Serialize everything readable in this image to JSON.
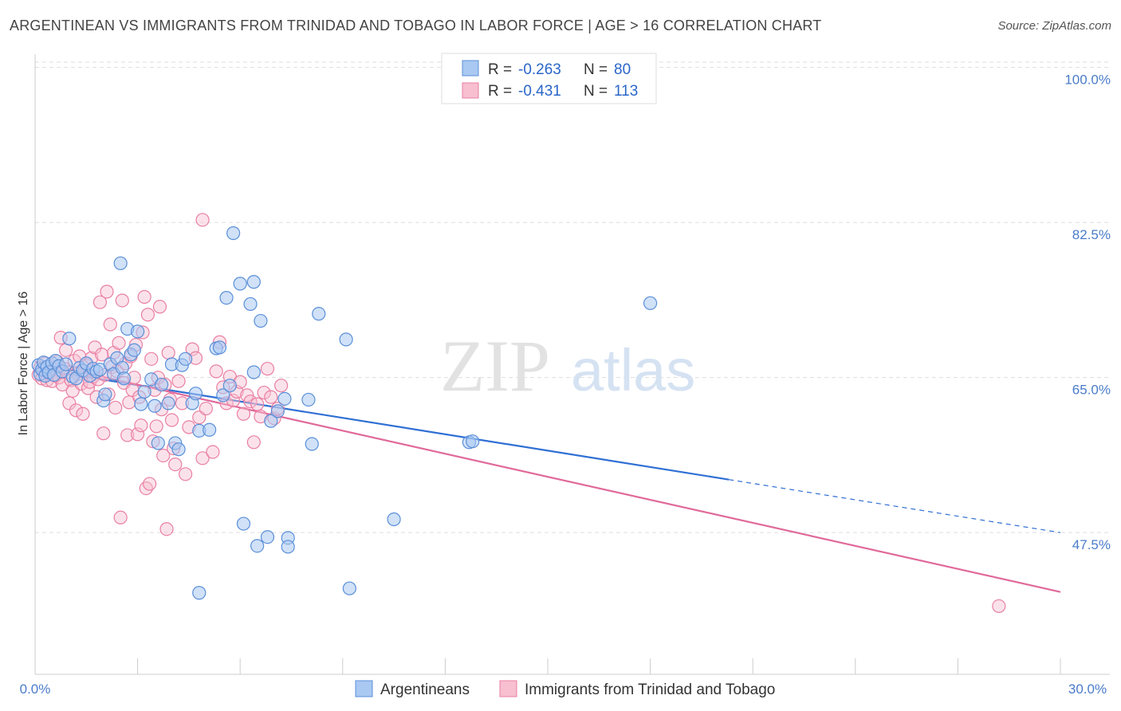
{
  "title": "ARGENTINEAN VS IMMIGRANTS FROM TRINIDAD AND TOBAGO IN LABOR FORCE | AGE > 16 CORRELATION CHART",
  "source": "Source: ZipAtlas.com",
  "watermark": {
    "zip": "ZIP",
    "atlas": "atlas"
  },
  "legend": {
    "r_label": "R =",
    "n_label": "N =",
    "rows": [
      {
        "r": "-0.263",
        "n": "80"
      },
      {
        "r": "-0.431",
        "n": "113"
      }
    ]
  },
  "colors": {
    "blue_fill": "#a9c9f2",
    "blue_stroke": "#5a8fd8",
    "blue_line": "#2f6fd4",
    "pink_fill": "#f7bfd0",
    "pink_stroke": "#e97fa3",
    "pink_line": "#e0699a",
    "grid": "#dddddd",
    "axis_text": "#4a7cc9"
  },
  "chart_data": {
    "type": "scatter",
    "title": "ARGENTINEAN VS IMMIGRANTS FROM TRINIDAD AND TOBAGO IN LABOR FORCE | AGE > 16 CORRELATION CHART",
    "xlabel": "",
    "ylabel": "In Labor Force | Age > 16",
    "xlim": [
      0,
      30
    ],
    "ylim": [
      31.5,
      101.5
    ],
    "x_ticks_labeled": [
      "0.0%",
      "30.0%"
    ],
    "y_ticks": [
      {
        "value": 100.0,
        "label": "100.0%"
      },
      {
        "value": 82.5,
        "label": "82.5%"
      },
      {
        "value": 65.0,
        "label": "65.0%"
      },
      {
        "value": 47.5,
        "label": "47.5%"
      }
    ],
    "grid": true,
    "legend_position": "top-center",
    "series": [
      {
        "name": "Argentineans",
        "r": -0.263,
        "n": 80,
        "trend": {
          "x0": 0,
          "y0": 66.0,
          "x1": 30,
          "y1": 47.5,
          "solid_until": 20.3
        },
        "points": [
          [
            0.1,
            66.4
          ],
          [
            0.15,
            65.4
          ],
          [
            0.2,
            65.9
          ],
          [
            0.25,
            66.7
          ],
          [
            0.3,
            65.2
          ],
          [
            0.35,
            66.2
          ],
          [
            0.4,
            65.6
          ],
          [
            0.5,
            66.6
          ],
          [
            0.55,
            65.3
          ],
          [
            0.6,
            66.9
          ],
          [
            0.7,
            66.3
          ],
          [
            0.8,
            65.7
          ],
          [
            0.9,
            66.5
          ],
          [
            1.0,
            69.4
          ],
          [
            1.1,
            65.1
          ],
          [
            1.2,
            64.9
          ],
          [
            1.3,
            66.1
          ],
          [
            1.4,
            65.8
          ],
          [
            1.5,
            66.6
          ],
          [
            1.6,
            65.2
          ],
          [
            1.7,
            66.0
          ],
          [
            1.8,
            65.7
          ],
          [
            1.9,
            65.9
          ],
          [
            2.0,
            62.4
          ],
          [
            2.05,
            63.1
          ],
          [
            2.2,
            66.5
          ],
          [
            2.3,
            65.4
          ],
          [
            2.4,
            67.2
          ],
          [
            2.5,
            77.9
          ],
          [
            2.55,
            66.1
          ],
          [
            2.6,
            64.9
          ],
          [
            2.7,
            70.5
          ],
          [
            2.8,
            67.6
          ],
          [
            2.9,
            68.1
          ],
          [
            3.0,
            70.2
          ],
          [
            3.1,
            62.0
          ],
          [
            3.2,
            63.4
          ],
          [
            3.4,
            64.8
          ],
          [
            3.5,
            61.8
          ],
          [
            3.6,
            57.6
          ],
          [
            3.7,
            64.2
          ],
          [
            3.9,
            62.1
          ],
          [
            4.0,
            66.5
          ],
          [
            4.1,
            57.6
          ],
          [
            4.2,
            56.9
          ],
          [
            4.3,
            66.4
          ],
          [
            4.4,
            67.1
          ],
          [
            4.6,
            62.1
          ],
          [
            4.7,
            63.2
          ],
          [
            4.8,
            59.0
          ],
          [
            4.8,
            40.7
          ],
          [
            5.1,
            59.1
          ],
          [
            5.3,
            68.3
          ],
          [
            5.4,
            68.4
          ],
          [
            5.5,
            63.0
          ],
          [
            5.6,
            74.0
          ],
          [
            5.7,
            64.1
          ],
          [
            5.8,
            81.3
          ],
          [
            6.0,
            75.6
          ],
          [
            6.1,
            48.5
          ],
          [
            6.3,
            73.3
          ],
          [
            6.4,
            75.8
          ],
          [
            6.4,
            65.6
          ],
          [
            6.5,
            46.0
          ],
          [
            6.6,
            71.4
          ],
          [
            6.8,
            47.0
          ],
          [
            6.9,
            60.1
          ],
          [
            7.1,
            61.2
          ],
          [
            7.3,
            62.6
          ],
          [
            7.4,
            46.9
          ],
          [
            7.4,
            45.9
          ],
          [
            8.0,
            62.5
          ],
          [
            8.1,
            57.5
          ],
          [
            8.3,
            72.2
          ],
          [
            9.1,
            69.3
          ],
          [
            9.2,
            41.2
          ],
          [
            10.5,
            49.0
          ],
          [
            12.7,
            57.7
          ],
          [
            12.8,
            57.8
          ],
          [
            18.0,
            73.4
          ]
        ]
      },
      {
        "name": "Immigrants from Trinidad and Tobago",
        "r": -0.431,
        "n": 113,
        "trend": {
          "x0": 0,
          "y0": 66.8,
          "x1": 30,
          "y1": 40.8
        },
        "points": [
          [
            0.1,
            65.3
          ],
          [
            0.15,
            66.1
          ],
          [
            0.2,
            64.9
          ],
          [
            0.25,
            65.8
          ],
          [
            0.3,
            66.6
          ],
          [
            0.35,
            64.7
          ],
          [
            0.4,
            65.5
          ],
          [
            0.45,
            66.3
          ],
          [
            0.5,
            64.6
          ],
          [
            0.55,
            65.9
          ],
          [
            0.6,
            65.2
          ],
          [
            0.65,
            66.8
          ],
          [
            0.7,
            65.0
          ],
          [
            0.75,
            69.5
          ],
          [
            0.8,
            64.2
          ],
          [
            0.85,
            66.0
          ],
          [
            0.9,
            68.1
          ],
          [
            0.95,
            65.6
          ],
          [
            1.0,
            62.1
          ],
          [
            1.05,
            64.7
          ],
          [
            1.1,
            63.5
          ],
          [
            1.15,
            66.9
          ],
          [
            1.2,
            61.3
          ],
          [
            1.25,
            65.4
          ],
          [
            1.3,
            67.4
          ],
          [
            1.35,
            64.3
          ],
          [
            1.4,
            60.9
          ],
          [
            1.45,
            65.7
          ],
          [
            1.5,
            66.4
          ],
          [
            1.55,
            63.8
          ],
          [
            1.6,
            64.5
          ],
          [
            1.65,
            67.2
          ],
          [
            1.7,
            65.1
          ],
          [
            1.75,
            68.4
          ],
          [
            1.8,
            62.8
          ],
          [
            1.85,
            64.8
          ],
          [
            1.9,
            73.5
          ],
          [
            1.95,
            67.6
          ],
          [
            2.0,
            58.7
          ],
          [
            2.05,
            65.3
          ],
          [
            2.1,
            74.7
          ],
          [
            2.15,
            63.1
          ],
          [
            2.2,
            71.0
          ],
          [
            2.25,
            66.2
          ],
          [
            2.3,
            67.8
          ],
          [
            2.35,
            61.6
          ],
          [
            2.4,
            65.7
          ],
          [
            2.45,
            68.9
          ],
          [
            2.5,
            49.2
          ],
          [
            2.55,
            73.7
          ],
          [
            2.6,
            64.4
          ],
          [
            2.65,
            66.6
          ],
          [
            2.7,
            58.5
          ],
          [
            2.75,
            62.2
          ],
          [
            2.8,
            67.4
          ],
          [
            2.85,
            63.6
          ],
          [
            2.9,
            65.0
          ],
          [
            2.95,
            68.7
          ],
          [
            3.0,
            58.6
          ],
          [
            3.05,
            62.8
          ],
          [
            3.1,
            59.6
          ],
          [
            3.15,
            70.1
          ],
          [
            3.2,
            74.1
          ],
          [
            3.25,
            52.5
          ],
          [
            3.3,
            72.1
          ],
          [
            3.35,
            53.0
          ],
          [
            3.4,
            67.1
          ],
          [
            3.45,
            57.8
          ],
          [
            3.5,
            63.6
          ],
          [
            3.55,
            59.5
          ],
          [
            3.6,
            65.0
          ],
          [
            3.65,
            73.0
          ],
          [
            3.7,
            61.4
          ],
          [
            3.75,
            56.2
          ],
          [
            3.8,
            64.2
          ],
          [
            3.85,
            47.9
          ],
          [
            3.9,
            67.8
          ],
          [
            3.95,
            62.5
          ],
          [
            4.0,
            60.2
          ],
          [
            4.05,
            57.0
          ],
          [
            4.1,
            55.2
          ],
          [
            4.2,
            64.6
          ],
          [
            4.3,
            62.1
          ],
          [
            4.4,
            54.1
          ],
          [
            4.5,
            59.4
          ],
          [
            4.6,
            68.2
          ],
          [
            4.7,
            67.2
          ],
          [
            4.8,
            60.5
          ],
          [
            4.9,
            55.9
          ],
          [
            4.9,
            82.8
          ],
          [
            5.0,
            61.5
          ],
          [
            5.2,
            56.6
          ],
          [
            5.3,
            65.7
          ],
          [
            5.4,
            69.0
          ],
          [
            5.5,
            63.9
          ],
          [
            5.6,
            62.1
          ],
          [
            5.7,
            65.1
          ],
          [
            5.8,
            62.4
          ],
          [
            5.9,
            63.4
          ],
          [
            6.0,
            64.5
          ],
          [
            6.1,
            60.9
          ],
          [
            6.2,
            63.0
          ],
          [
            6.3,
            62.3
          ],
          [
            6.4,
            57.7
          ],
          [
            6.5,
            62.0
          ],
          [
            6.6,
            60.6
          ],
          [
            6.7,
            63.3
          ],
          [
            6.8,
            66.0
          ],
          [
            6.9,
            62.8
          ],
          [
            7.0,
            60.4
          ],
          [
            7.1,
            61.5
          ],
          [
            7.2,
            64.1
          ],
          [
            28.2,
            39.2
          ]
        ]
      }
    ]
  },
  "bottom_legend": [
    {
      "label": "Argentineans"
    },
    {
      "label": "Immigrants from Trinidad and Tobago"
    }
  ]
}
